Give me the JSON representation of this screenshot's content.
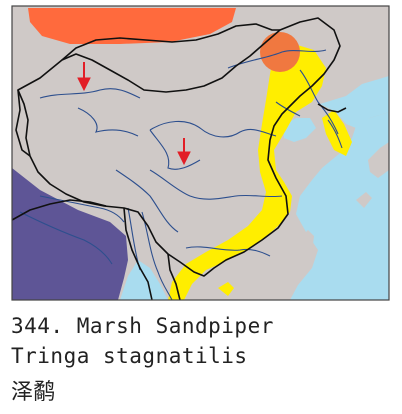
{
  "map": {
    "colors": {
      "land": "#cfc9c7",
      "sea": "#a9dcef",
      "breeding_range": "#ff6a3d",
      "overlap": "#f07840",
      "wintering_range": "#ffee00",
      "resident_range": "#5e5596",
      "river": "#2d4f8e",
      "border": "#111111",
      "marker": "#e21e26",
      "frame": "#444444"
    },
    "markers": [
      "record-arrow",
      "record-arrow"
    ]
  },
  "caption": {
    "species_line": "344. Marsh Sandpiper",
    "scientific_name": "Tringa stagnatilis",
    "chinese_name": "泽鹬"
  }
}
